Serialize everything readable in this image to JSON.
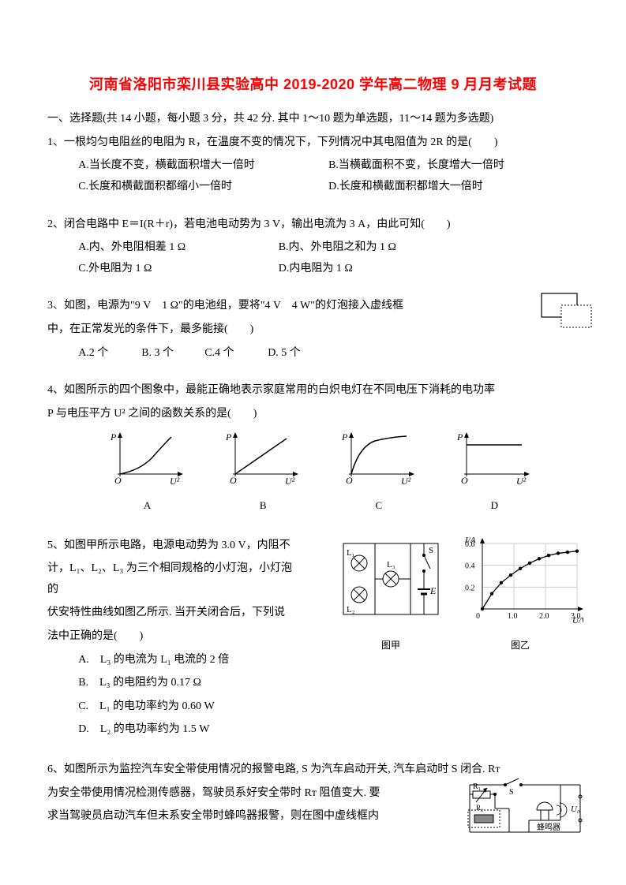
{
  "title": "河南省洛阳市栾川县实验高中 2019-2020 学年高二物理 9 月月考试题",
  "section1": "一、选择题(共 14 小题，每小题 3 分，共 42 分. 其中 1～10 题为单选题，11～14 题为多选题)",
  "q1": {
    "stem": "1、一根均匀电阻丝的电阻为 R，在温度不变的情况下，下列情况中其电阻值为 2R 的是(　　)",
    "A": "A.当长度不变，横截面积增大一倍时",
    "B": "B.当横截面积不变，长度增大一倍时",
    "C": "C.长度和横截面积都缩小一倍时",
    "D": "D.长度和横截面积都增大一倍时"
  },
  "q2": {
    "stem": "2、闭合电路中 E＝I(R＋r)，若电池电动势为 3 V，输出电流为 3 A，由此可知(　　)",
    "A": "A.内、外电阻相差 1 Ω",
    "B": "B.内、外电阻之和为 1 Ω",
    "C": "C.外电阻为 1 Ω",
    "D": "D.内电阻为 1 Ω"
  },
  "q3": {
    "line1": "3、如图，电源为\"9 V　1 Ω\"的电池组，要将\"4 V　4 W\"的灯泡接入虚线框",
    "line2": "中，在正常发光的条件下，最多能接(　　)",
    "A": "A.2 个",
    "B": "B. 3 个",
    "C": "C.4 个",
    "D": "D. 5 个"
  },
  "q4": {
    "stem1": "4、如图所示的四个图象中，最能正确地表示家庭常用的白炽电灯在不同电压下消耗的电功率",
    "stem2": "P 与电压平方 U² 之间的函数关系的是(　　)",
    "labels": {
      "A": "A",
      "B": "B",
      "C": "C",
      "D": "D"
    },
    "axis_y": "P",
    "axis_x": "U²",
    "origin": "O"
  },
  "q5": {
    "l1": "5、如图甲所示电路，电源电动势为 3.0 V，内阻不",
    "l2": "计，L₁、L₂、L₃ 为三个相同规格的小灯泡，小灯泡的",
    "l3": "伏安特性曲线如图乙所示. 当开关闭合后，下列说",
    "l4": "法中正确的是(　　)",
    "A": "A.　L₃ 的电流为 L₁ 电流的 2 倍",
    "B": "B.　L₃ 的电阻约为 0.17 Ω",
    "C": "C.　L₁ 的电功率约为 0.60 W",
    "D": "D.　L₂ 的电功率约为 1.5 W",
    "fig_jia": "图甲",
    "fig_yi": "图乙",
    "chart": {
      "ylabel": "I/A",
      "xlabel": "U/V",
      "yticks": [
        "0.2",
        "0.4",
        "0.6"
      ],
      "xticks": [
        "1.0",
        "2.0",
        "3.0"
      ],
      "points_x": [
        0,
        0.3,
        0.6,
        0.9,
        1.2,
        1.5,
        1.8,
        2.1,
        2.4,
        2.7,
        3.0
      ],
      "points_y": [
        0,
        0.14,
        0.24,
        0.31,
        0.37,
        0.42,
        0.46,
        0.49,
        0.51,
        0.52,
        0.53
      ],
      "bg": "#ffffff",
      "grid": "#cccccc",
      "line": "#000000"
    },
    "circuit": {
      "L1": "L₁",
      "L2": "L₂",
      "L3": "L₃",
      "S": "S",
      "E": "E"
    }
  },
  "q6": {
    "l1": "6、如图所示为监控汽车安全带使用情况的报警电路, S 为汽车启动开关, 汽车启动时 S 闭合. Rᴛ",
    "l2": "为安全带使用情况检测传感器，驾驶员系好安全带时 Rᴛ 阻值变大. 要",
    "l3": "求当驾驶员启动汽车但未系安全带时蜂鸣器报警，则在图中虚线框内",
    "labels": {
      "R1": "R₁",
      "R2": "R₂",
      "S": "S",
      "buzzer": "蜂鸣器",
      "U0": "U₀"
    }
  }
}
